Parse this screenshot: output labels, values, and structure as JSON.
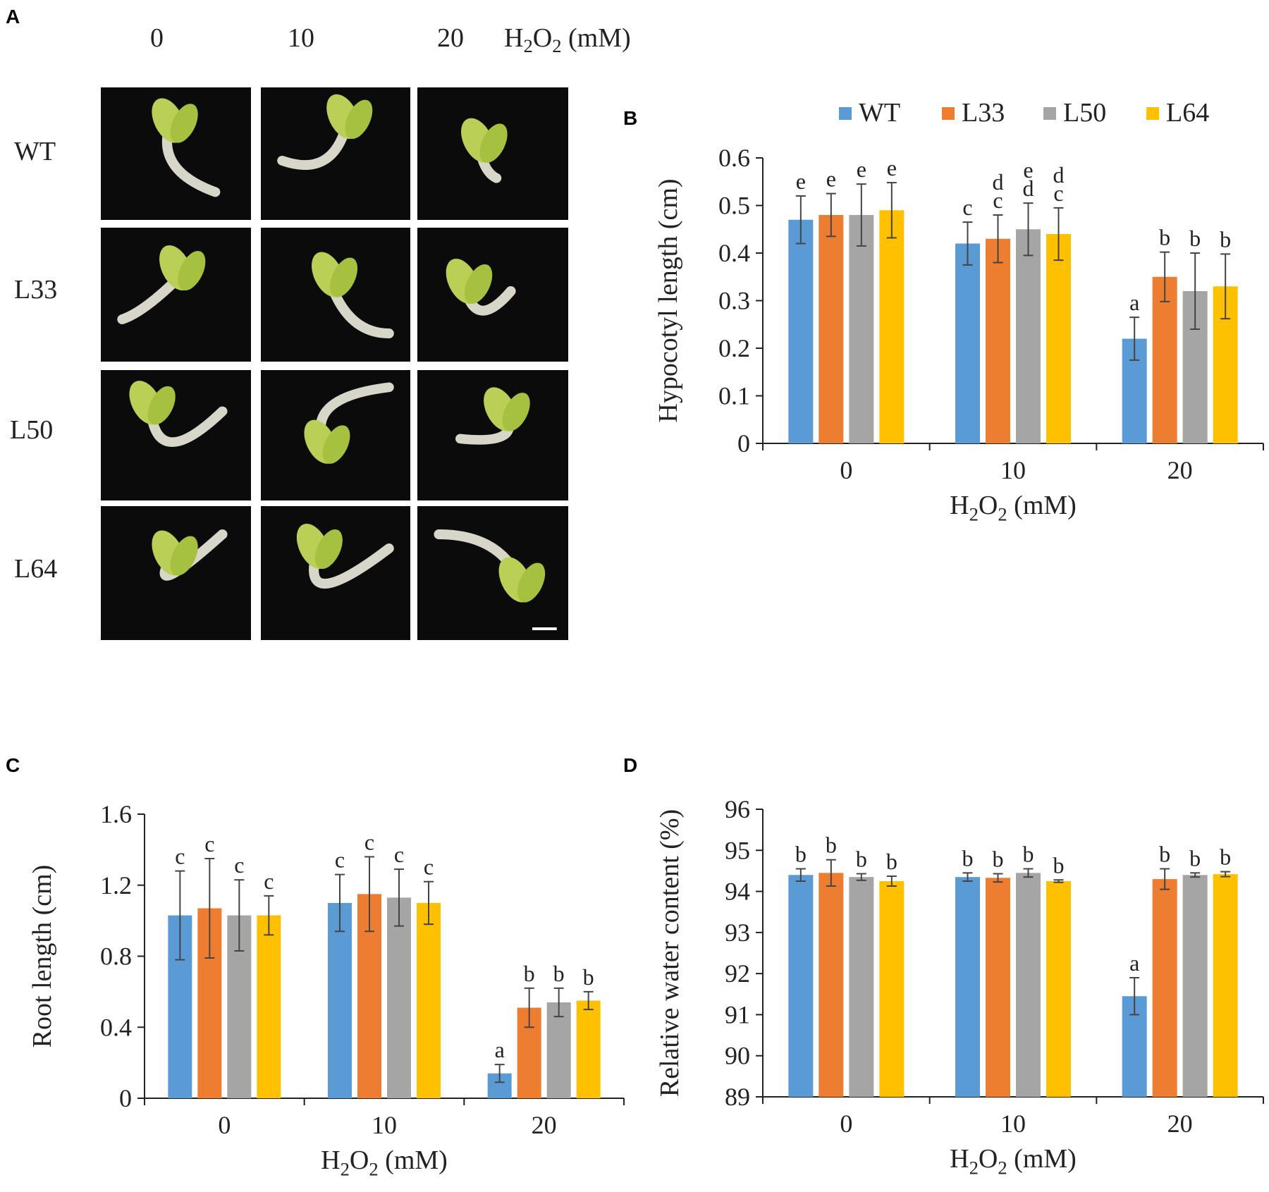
{
  "panels": {
    "a": "A",
    "b": "B",
    "c": "C",
    "d": "D"
  },
  "panel_a": {
    "column_headers": [
      "0",
      "10",
      "20"
    ],
    "unit_label": "H2O2 (mM)",
    "row_labels": [
      "WT",
      "L33",
      "L50",
      "L64"
    ]
  },
  "legend": [
    {
      "name": "WT",
      "color": "#5B9BD5"
    },
    {
      "name": "L33",
      "color": "#ED7D31"
    },
    {
      "name": "L50",
      "color": "#A5A5A5"
    },
    {
      "name": "L64",
      "color": "#FFC000"
    }
  ],
  "chart_data": [
    {
      "id": "B",
      "type": "bar",
      "title": "",
      "xlabel": "H2O2 (mM)",
      "ylabel": "Hypocotyl length (cm)",
      "categories": [
        "0",
        "10",
        "20"
      ],
      "ylim": [
        0,
        0.6
      ],
      "yticks": [
        "0",
        "0.1",
        "0.2",
        "0.3",
        "0.4",
        "0.5",
        "0.6"
      ],
      "series": [
        {
          "name": "WT",
          "values": [
            0.47,
            0.42,
            0.22
          ],
          "errors": [
            0.05,
            0.045,
            0.045
          ],
          "letters": [
            [
              "e"
            ],
            [
              "c"
            ],
            [
              "a"
            ]
          ]
        },
        {
          "name": "L33",
          "values": [
            0.48,
            0.43,
            0.35
          ],
          "errors": [
            0.045,
            0.05,
            0.052
          ],
          "letters": [
            [
              "e"
            ],
            [
              "d",
              "c"
            ],
            [
              "b"
            ]
          ]
        },
        {
          "name": "L50",
          "values": [
            0.48,
            0.45,
            0.32
          ],
          "errors": [
            0.065,
            0.055,
            0.08
          ],
          "letters": [
            [
              "e"
            ],
            [
              "e",
              "d"
            ],
            [
              "b"
            ]
          ]
        },
        {
          "name": "L64",
          "values": [
            0.49,
            0.44,
            0.33
          ],
          "errors": [
            0.058,
            0.055,
            0.068
          ],
          "letters": [
            [
              "e"
            ],
            [
              "d",
              "c"
            ],
            [
              "b"
            ]
          ]
        }
      ]
    },
    {
      "id": "C",
      "type": "bar",
      "title": "",
      "xlabel": "H2O2 (mM)",
      "ylabel": "Root length (cm)",
      "categories": [
        "0",
        "10",
        "20"
      ],
      "ylim": [
        0,
        1.6
      ],
      "yticks": [
        "0",
        "0.4",
        "0.8",
        "1.2",
        "1.6"
      ],
      "series": [
        {
          "name": "WT",
          "values": [
            1.03,
            1.1,
            0.14
          ],
          "errors": [
            0.25,
            0.16,
            0.05
          ],
          "letters": [
            [
              "c"
            ],
            [
              "c"
            ],
            [
              "a"
            ]
          ]
        },
        {
          "name": "L33",
          "values": [
            1.07,
            1.15,
            0.51
          ],
          "errors": [
            0.28,
            0.21,
            0.11
          ],
          "letters": [
            [
              "c"
            ],
            [
              "c"
            ],
            [
              "b"
            ]
          ]
        },
        {
          "name": "L50",
          "values": [
            1.03,
            1.13,
            0.54
          ],
          "errors": [
            0.2,
            0.16,
            0.08
          ],
          "letters": [
            [
              "c"
            ],
            [
              "c"
            ],
            [
              "b"
            ]
          ]
        },
        {
          "name": "L64",
          "values": [
            1.03,
            1.1,
            0.55
          ],
          "errors": [
            0.11,
            0.12,
            0.05
          ],
          "letters": [
            [
              "c"
            ],
            [
              "c"
            ],
            [
              "b"
            ]
          ]
        }
      ]
    },
    {
      "id": "D",
      "type": "bar",
      "title": "",
      "xlabel": "H2O2 (mM)",
      "ylabel": "Relative water content (%)",
      "categories": [
        "0",
        "10",
        "20"
      ],
      "ylim": [
        89,
        96
      ],
      "yticks": [
        "89",
        "90",
        "91",
        "92",
        "93",
        "94",
        "95",
        "96"
      ],
      "series": [
        {
          "name": "WT",
          "values": [
            94.4,
            94.35,
            91.45
          ],
          "errors": [
            0.15,
            0.1,
            0.45
          ],
          "letters": [
            [
              "b"
            ],
            [
              "b"
            ],
            [
              "a"
            ]
          ]
        },
        {
          "name": "L33",
          "values": [
            94.45,
            94.33,
            94.3
          ],
          "errors": [
            0.32,
            0.1,
            0.25
          ],
          "letters": [
            [
              "b"
            ],
            [
              "b"
            ],
            [
              "b"
            ]
          ]
        },
        {
          "name": "L50",
          "values": [
            94.35,
            94.45,
            94.4
          ],
          "errors": [
            0.08,
            0.1,
            0.05
          ],
          "letters": [
            [
              "b"
            ],
            [
              "b"
            ],
            [
              "b"
            ]
          ]
        },
        {
          "name": "L64",
          "values": [
            94.25,
            94.25,
            94.42
          ],
          "errors": [
            0.12,
            0.03,
            0.06
          ],
          "letters": [
            [
              "b"
            ],
            [
              "b"
            ],
            [
              "b"
            ]
          ]
        }
      ]
    }
  ]
}
